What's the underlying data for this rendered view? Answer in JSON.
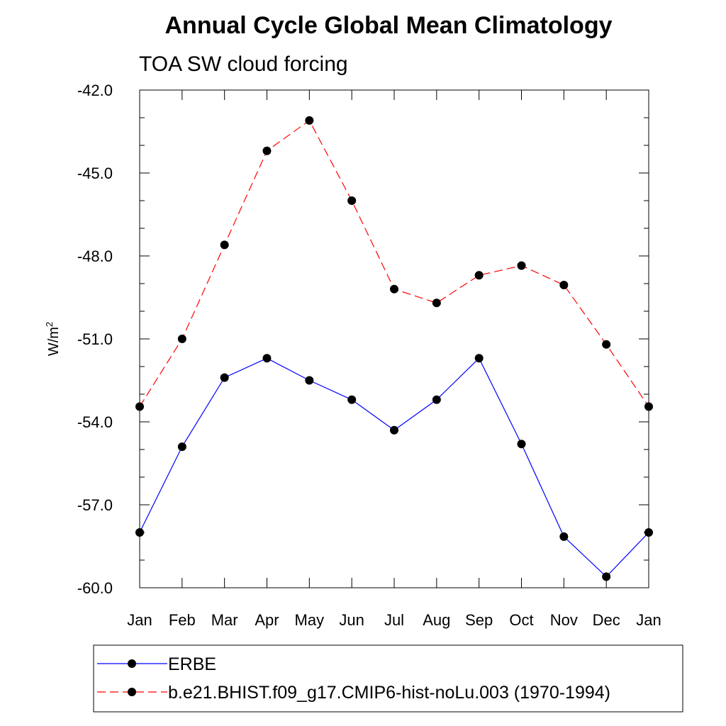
{
  "chart_data": {
    "type": "line",
    "title": "Annual Cycle Global Mean Climatology",
    "subtitle": "TOA SW cloud forcing",
    "ylabel": "W/m",
    "ylabel_superscript": "2",
    "ylim": [
      -60.0,
      -42.0
    ],
    "yticks": [
      "-42.0",
      "-45.0",
      "-48.0",
      "-51.0",
      "-54.0",
      "-57.0",
      "-60.0"
    ],
    "ytick_values": [
      -42,
      -45,
      -48,
      -51,
      -54,
      -57,
      -60
    ],
    "categories": [
      "Jan",
      "Feb",
      "Mar",
      "Apr",
      "May",
      "Jun",
      "Jul",
      "Aug",
      "Sep",
      "Oct",
      "Nov",
      "Dec",
      "Jan"
    ],
    "grid": false,
    "legend_position": "bottom",
    "series": [
      {
        "name": "ERBE",
        "color": "#0000ff",
        "dash": "solid",
        "values": [
          -58.0,
          -54.9,
          -52.4,
          -51.7,
          -52.5,
          -53.2,
          -54.3,
          -53.2,
          -51.7,
          -54.8,
          -58.15,
          -59.6,
          -58.0
        ]
      },
      {
        "name": "b.e21.BHIST.f09_g17.CMIP6-hist-noLu.003 (1970-1994)",
        "color": "#ff0000",
        "dash": "dashed",
        "values": [
          -53.45,
          -51.0,
          -47.6,
          -44.2,
          -43.1,
          -46.0,
          -49.2,
          -49.7,
          -48.7,
          -48.35,
          -49.05,
          -51.2,
          -53.45
        ]
      }
    ]
  }
}
